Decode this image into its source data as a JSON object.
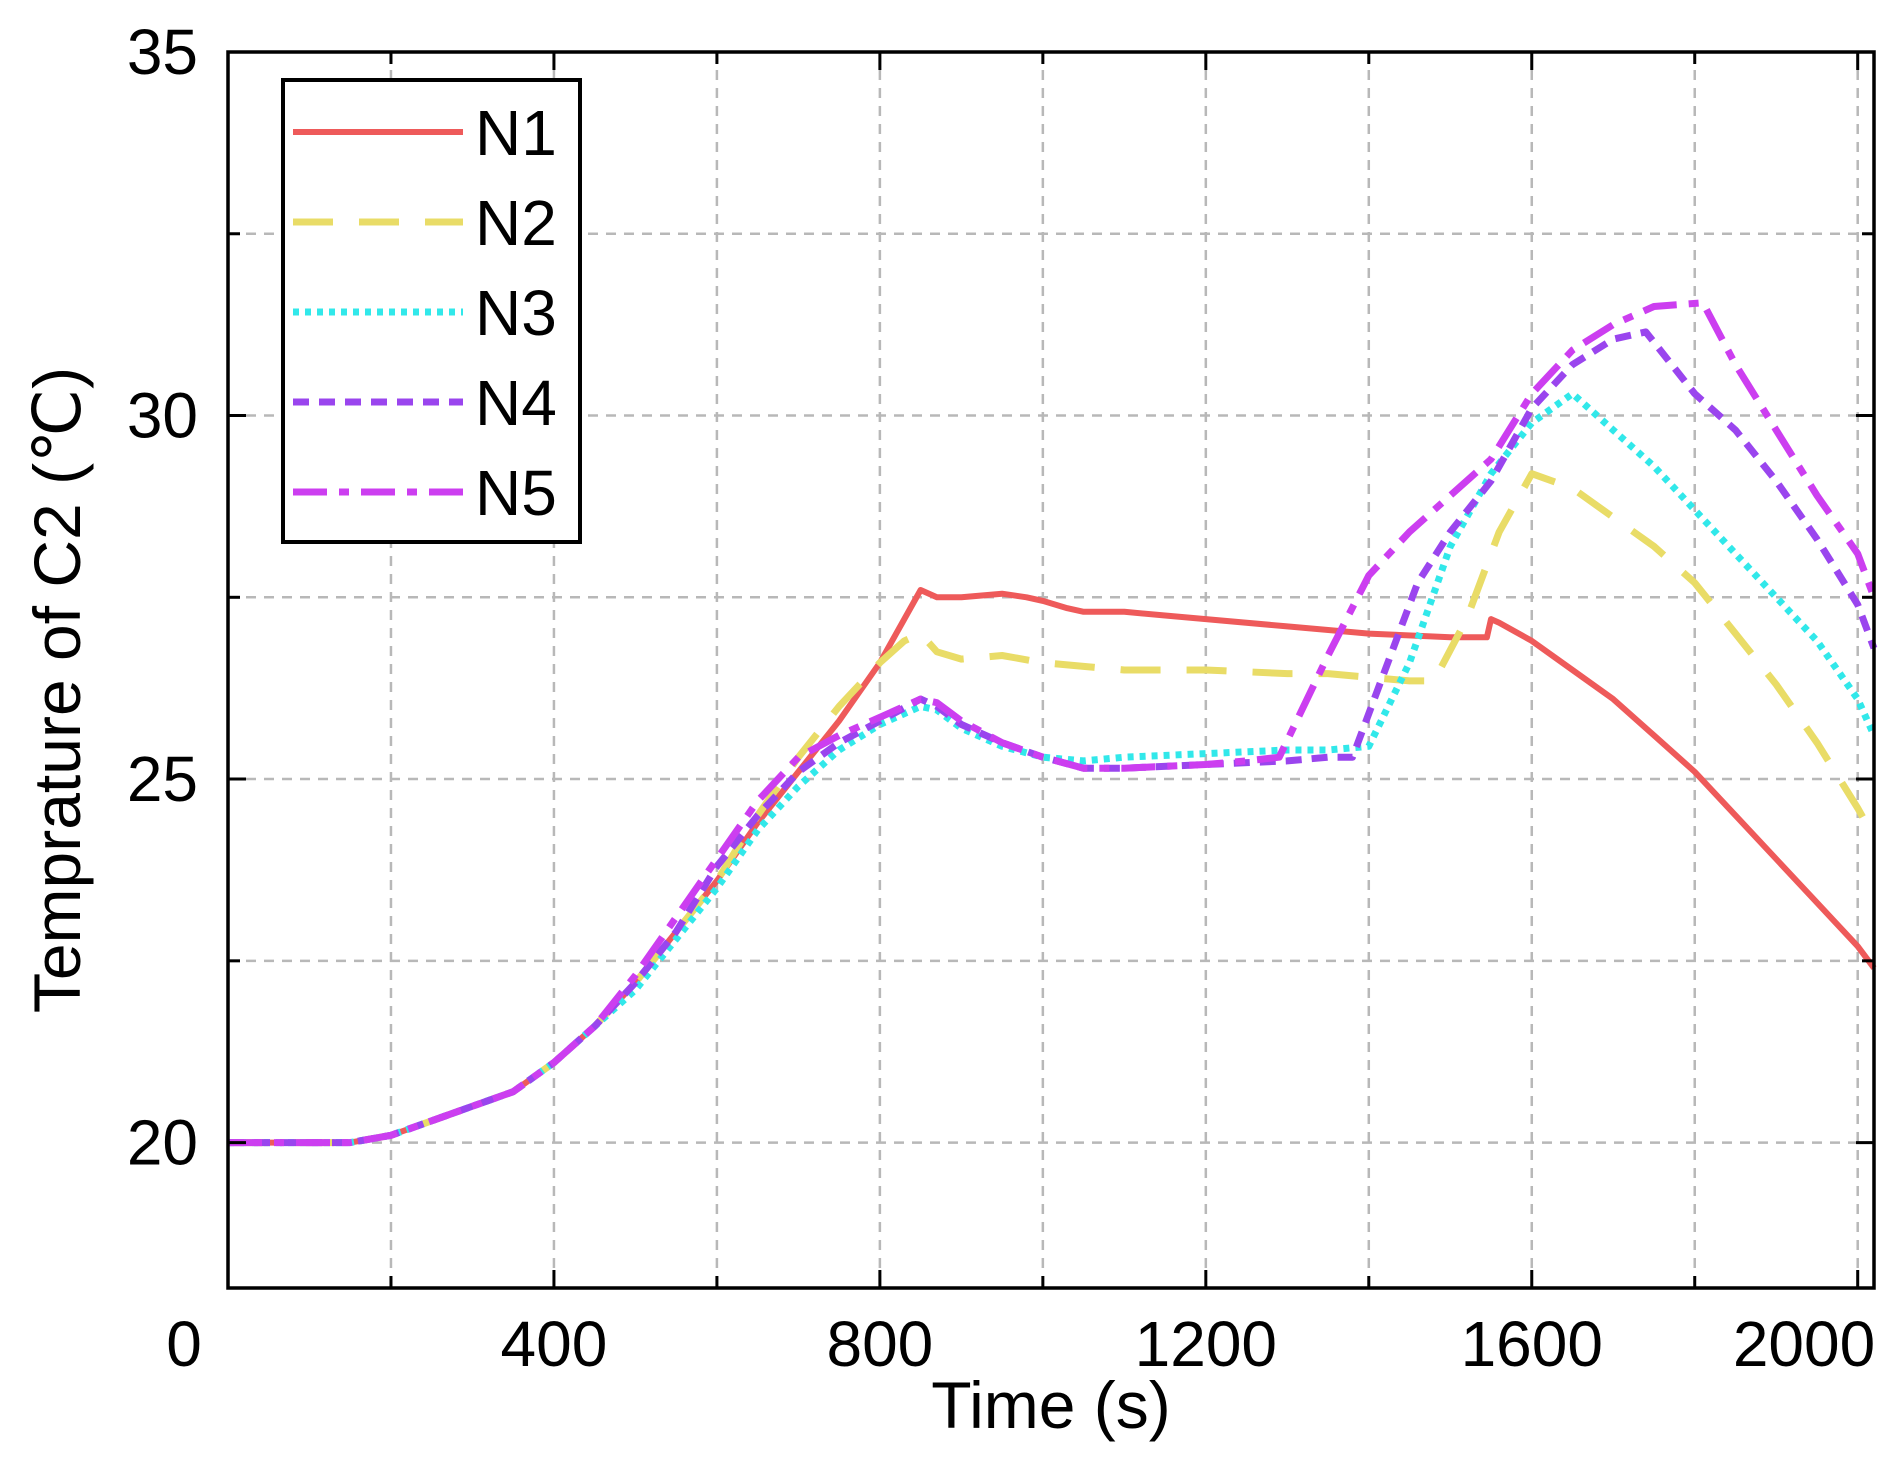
{
  "chart_data": {
    "type": "line",
    "title": "",
    "xlabel": "Time (s)",
    "ylabel": "Temprature of C2 (℃)",
    "xlim": [
      0,
      2020
    ],
    "ylim": [
      18,
      35
    ],
    "xticks": [
      0,
      400,
      800,
      1200,
      1600,
      2000
    ],
    "xtick_labels": [
      "0",
      "400",
      "800",
      "1200",
      "1600",
      "2000"
    ],
    "yticks": [
      20,
      25,
      30,
      35
    ],
    "ytick_labels": [
      "20",
      "25",
      "30",
      "35"
    ],
    "x_minor_ticks": [
      200,
      600,
      1000,
      1400,
      1800
    ],
    "y_minor_ticks": [
      22.5,
      27.5,
      32.5
    ],
    "grid": true,
    "legend_position": "top-left",
    "series": [
      {
        "name": "N1",
        "color": "#ee5a5a",
        "style": "solid",
        "x": [
          0,
          50,
          100,
          150,
          200,
          250,
          300,
          350,
          400,
          450,
          500,
          550,
          600,
          650,
          700,
          750,
          800,
          830,
          850,
          870,
          900,
          950,
          980,
          1000,
          1030,
          1050,
          1100,
          1150,
          1200,
          1300,
          1400,
          1500,
          1545,
          1550,
          1560,
          1600,
          1650,
          1700,
          1750,
          1800,
          1850,
          1900,
          1950,
          2000,
          2020
        ],
        "values": [
          20,
          20,
          20,
          20,
          20.1,
          20.3,
          20.5,
          20.7,
          21.1,
          21.6,
          22.2,
          22.9,
          23.6,
          24.4,
          25.1,
          25.8,
          26.6,
          27.2,
          27.6,
          27.5,
          27.5,
          27.55,
          27.5,
          27.45,
          27.35,
          27.3,
          27.3,
          27.25,
          27.2,
          27.1,
          27.0,
          26.95,
          26.95,
          27.2,
          27.15,
          26.9,
          26.5,
          26.1,
          25.6,
          25.1,
          24.5,
          23.9,
          23.3,
          22.7,
          22.4
        ]
      },
      {
        "name": "N2",
        "color": "#e9dc67",
        "style": "dashed",
        "x": [
          0,
          50,
          100,
          150,
          200,
          250,
          300,
          350,
          400,
          450,
          500,
          550,
          600,
          650,
          700,
          750,
          800,
          830,
          850,
          870,
          900,
          950,
          1000,
          1050,
          1100,
          1200,
          1300,
          1350,
          1400,
          1450,
          1480,
          1520,
          1560,
          1600,
          1650,
          1700,
          1750,
          1800,
          1850,
          1900,
          1950,
          2000,
          2020
        ],
        "values": [
          20,
          20,
          20,
          20,
          20.1,
          20.3,
          20.5,
          20.7,
          21.1,
          21.6,
          22.2,
          22.9,
          23.6,
          24.5,
          25.3,
          26.0,
          26.6,
          26.9,
          27.0,
          26.75,
          26.65,
          26.7,
          26.6,
          26.55,
          26.5,
          26.5,
          26.45,
          26.45,
          26.4,
          26.35,
          26.35,
          27.2,
          28.4,
          29.2,
          29.0,
          28.6,
          28.2,
          27.7,
          27.0,
          26.3,
          25.5,
          24.6,
          24.2
        ]
      },
      {
        "name": "N3",
        "color": "#31e8ea",
        "style": "dotted",
        "x": [
          0,
          50,
          100,
          150,
          200,
          250,
          300,
          350,
          400,
          450,
          500,
          550,
          600,
          650,
          700,
          750,
          800,
          850,
          870,
          900,
          950,
          1000,
          1050,
          1100,
          1200,
          1300,
          1350,
          1400,
          1450,
          1500,
          1550,
          1600,
          1650,
          1700,
          1750,
          1800,
          1850,
          1900,
          1950,
          2000,
          2020
        ],
        "values": [
          20,
          20,
          20,
          20,
          20.1,
          20.3,
          20.5,
          20.7,
          21.1,
          21.6,
          22.1,
          22.8,
          23.5,
          24.3,
          24.9,
          25.4,
          25.75,
          26.0,
          25.95,
          25.7,
          25.45,
          25.3,
          25.25,
          25.3,
          25.35,
          25.4,
          25.4,
          25.45,
          26.6,
          28.2,
          29.2,
          29.9,
          30.3,
          29.8,
          29.3,
          28.7,
          28.1,
          27.5,
          26.9,
          26.1,
          25.6
        ]
      },
      {
        "name": "N4",
        "color": "#9a45ee",
        "style": "short-dash",
        "x": [
          0,
          50,
          100,
          150,
          200,
          250,
          300,
          350,
          400,
          450,
          500,
          550,
          600,
          650,
          700,
          750,
          800,
          850,
          870,
          900,
          950,
          1000,
          1050,
          1100,
          1200,
          1300,
          1350,
          1380,
          1420,
          1460,
          1500,
          1550,
          1600,
          1650,
          1700,
          1740,
          1800,
          1850,
          1900,
          1950,
          2000,
          2020
        ],
        "values": [
          20,
          20,
          20,
          20,
          20.1,
          20.3,
          20.5,
          20.7,
          21.1,
          21.6,
          22.2,
          22.9,
          23.8,
          24.5,
          25.1,
          25.5,
          25.8,
          26.1,
          26.0,
          25.75,
          25.5,
          25.3,
          25.15,
          25.15,
          25.2,
          25.25,
          25.3,
          25.3,
          26.5,
          27.7,
          28.4,
          29.1,
          30.1,
          30.7,
          31.05,
          31.15,
          30.3,
          29.8,
          29.1,
          28.3,
          27.4,
          26.8
        ]
      },
      {
        "name": "N5",
        "color": "#cc3ef0",
        "style": "dash-dot",
        "x": [
          0,
          50,
          100,
          150,
          200,
          250,
          300,
          350,
          400,
          450,
          500,
          550,
          600,
          650,
          700,
          750,
          800,
          850,
          870,
          900,
          950,
          1000,
          1050,
          1100,
          1200,
          1250,
          1290,
          1350,
          1400,
          1450,
          1500,
          1550,
          1600,
          1650,
          1700,
          1750,
          1810,
          1850,
          1900,
          1950,
          2000,
          2020
        ],
        "values": [
          20,
          20,
          20,
          20,
          20.1,
          20.3,
          20.5,
          20.7,
          21.1,
          21.6,
          22.3,
          23.1,
          23.9,
          24.7,
          25.3,
          25.6,
          25.85,
          26.1,
          26.05,
          25.8,
          25.5,
          25.3,
          25.15,
          25.15,
          25.2,
          25.25,
          25.3,
          26.7,
          27.8,
          28.4,
          28.9,
          29.4,
          30.3,
          30.9,
          31.25,
          31.5,
          31.55,
          30.7,
          29.8,
          28.9,
          28.1,
          27.5
        ]
      }
    ]
  }
}
